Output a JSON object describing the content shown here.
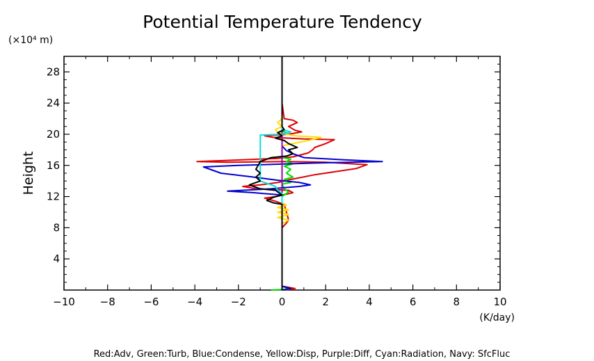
{
  "chart_data": {
    "type": "line",
    "title": "Potential Temperature Tendency",
    "xlabel": "(K/day)",
    "ylabel": "Height",
    "yunit": "(×10⁴ m)",
    "legend_text": "Red:Adv, Green:Turb, Blue:Condense, Yellow:Disp, Purple:Diff, Cyan:Radiation, Navy: SfcFluc",
    "legend_position": "bottom",
    "xlim": [
      -10,
      10
    ],
    "ylim": [
      0,
      30
    ],
    "xticks": [
      -10,
      -8,
      -6,
      -4,
      -2,
      0,
      2,
      4,
      6,
      8,
      10
    ],
    "yticks": [
      4,
      8,
      12,
      16,
      20,
      24,
      28
    ],
    "grid": false,
    "series": [
      {
        "name": "Adv",
        "color": "#dd0000",
        "points": [
          [
            0.1,
            0
          ],
          [
            0.6,
            0.2
          ],
          [
            0,
            0.5
          ],
          [
            0,
            6
          ],
          [
            0,
            8
          ],
          [
            0.2,
            8.6
          ],
          [
            0.3,
            9
          ],
          [
            0.2,
            10
          ],
          [
            0.1,
            11
          ],
          [
            -0.3,
            11.4
          ],
          [
            -0.8,
            11.8
          ],
          [
            -0.3,
            12
          ],
          [
            0.5,
            12.5
          ],
          [
            0.3,
            12.8
          ],
          [
            -1.2,
            13
          ],
          [
            -1.8,
            13.3
          ],
          [
            -1,
            13.5
          ],
          [
            -0.2,
            13.8
          ],
          [
            0.4,
            14.2
          ],
          [
            1.5,
            14.8
          ],
          [
            3.4,
            15.6
          ],
          [
            3.9,
            16.1
          ],
          [
            2.0,
            16.4
          ],
          [
            0.2,
            16.5
          ],
          [
            -2.5,
            16.4
          ],
          [
            -3.9,
            16.5
          ],
          [
            -2.0,
            16.7
          ],
          [
            -0.2,
            16.9
          ],
          [
            0.5,
            17.1
          ],
          [
            1.2,
            17.6
          ],
          [
            1.4,
            18
          ],
          [
            1.5,
            18.3
          ],
          [
            2.0,
            18.8
          ],
          [
            2.4,
            19.3
          ],
          [
            1.0,
            19.4
          ],
          [
            -0.4,
            19.6
          ],
          [
            -0.8,
            19.8
          ],
          [
            0.3,
            20.0
          ],
          [
            0.9,
            20.3
          ],
          [
            0.6,
            20.5
          ],
          [
            0.3,
            21
          ],
          [
            0.7,
            21.5
          ],
          [
            0.5,
            21.8
          ],
          [
            0.1,
            22
          ],
          [
            0,
            24
          ],
          [
            0,
            26
          ],
          [
            0,
            30
          ]
        ]
      },
      {
        "name": "Turb",
        "color": "#00dd00",
        "points": [
          [
            -0.5,
            0
          ],
          [
            0.3,
            0.1
          ],
          [
            0,
            0.5
          ],
          [
            0,
            12
          ],
          [
            0.3,
            12.6
          ],
          [
            0.1,
            13
          ],
          [
            0,
            13.6
          ],
          [
            0.4,
            13.8
          ],
          [
            0.1,
            14.2
          ],
          [
            0.5,
            14.5
          ],
          [
            0.2,
            15
          ],
          [
            0.4,
            15.5
          ],
          [
            0.1,
            15.9
          ],
          [
            0.5,
            16.2
          ],
          [
            0.2,
            16.5
          ],
          [
            0.4,
            16.8
          ],
          [
            0,
            17
          ],
          [
            0,
            20
          ],
          [
            0.2,
            20.2
          ],
          [
            0,
            20.4
          ],
          [
            0,
            30
          ]
        ]
      },
      {
        "name": "Condense",
        "color": "#0000cc",
        "points": [
          [
            0,
            0
          ],
          [
            0.4,
            0.2
          ],
          [
            0,
            0.5
          ],
          [
            0,
            12.2
          ],
          [
            -1.3,
            12.5
          ],
          [
            -2.5,
            12.7
          ],
          [
            -0.5,
            13
          ],
          [
            0.8,
            13.3
          ],
          [
            1.3,
            13.5
          ],
          [
            0.8,
            13.8
          ],
          [
            -0.2,
            14.1
          ],
          [
            -1.3,
            14.5
          ],
          [
            -2.8,
            15
          ],
          [
            -3.6,
            15.8
          ],
          [
            -2.0,
            16.0
          ],
          [
            1.5,
            16.3
          ],
          [
            4.6,
            16.5
          ],
          [
            3.0,
            16.7
          ],
          [
            1.0,
            17.0
          ],
          [
            0.5,
            17.5
          ],
          [
            0.2,
            17.9
          ],
          [
            0,
            18.5
          ],
          [
            0,
            30
          ]
        ]
      },
      {
        "name": "Disp",
        "color": "#ffdd00",
        "points": [
          [
            0,
            8.5
          ],
          [
            0.3,
            9
          ],
          [
            -0.2,
            9.3
          ],
          [
            0.3,
            9.7
          ],
          [
            -0.2,
            10
          ],
          [
            0.3,
            10.3
          ],
          [
            -0.2,
            10.6
          ],
          [
            0.2,
            10.9
          ],
          [
            0,
            11.2
          ],
          [
            0,
            18.5
          ],
          [
            0.5,
            18.8
          ],
          [
            1.2,
            19.2
          ],
          [
            1.8,
            19.6
          ],
          [
            0.6,
            19.8
          ],
          [
            -0.2,
            20.2
          ],
          [
            -0.3,
            20.6
          ],
          [
            0,
            21.0
          ],
          [
            -0.2,
            21.5
          ],
          [
            0,
            22
          ],
          [
            0,
            30
          ]
        ]
      },
      {
        "name": "Diff",
        "color": "#9900aa",
        "points": [
          [
            0,
            0
          ],
          [
            0,
            30
          ]
        ]
      },
      {
        "name": "Radiation",
        "color": "#00e5e5",
        "points": [
          [
            0,
            0
          ],
          [
            0,
            12.4
          ],
          [
            -0.2,
            12.8
          ],
          [
            -0.3,
            13.3
          ],
          [
            -1.0,
            14
          ],
          [
            -1.0,
            15
          ],
          [
            -1.0,
            16
          ],
          [
            -1.0,
            17
          ],
          [
            -1.0,
            18
          ],
          [
            -1.0,
            19
          ],
          [
            -1.0,
            19.9
          ],
          [
            0,
            20
          ],
          [
            0.4,
            20.3
          ],
          [
            0,
            20.6
          ],
          [
            0,
            30
          ]
        ]
      },
      {
        "name": "SfcFluc",
        "color": "#000000",
        "points": [
          [
            0,
            0
          ],
          [
            0,
            11
          ],
          [
            -0.4,
            11.2
          ],
          [
            -0.7,
            11.5
          ],
          [
            -0.4,
            11.9
          ],
          [
            0,
            12.2
          ],
          [
            -0.3,
            12.8
          ],
          [
            -1.0,
            13.0
          ],
          [
            -1.5,
            13.5
          ],
          [
            -1.0,
            14.0
          ],
          [
            -1.2,
            14.5
          ],
          [
            -1.0,
            15
          ],
          [
            -1.2,
            15.5
          ],
          [
            -1.1,
            16
          ],
          [
            -1.0,
            16.5
          ],
          [
            -0.5,
            17
          ],
          [
            0.2,
            17.2
          ],
          [
            0.5,
            17.5
          ],
          [
            0.3,
            18
          ],
          [
            0.7,
            18.3
          ],
          [
            0.3,
            18.8
          ],
          [
            0.1,
            19.2
          ],
          [
            -0.3,
            19.5
          ],
          [
            0,
            19.8
          ],
          [
            -0.2,
            20.2
          ],
          [
            0.1,
            20.6
          ],
          [
            0,
            21
          ],
          [
            0,
            30
          ]
        ]
      }
    ]
  }
}
